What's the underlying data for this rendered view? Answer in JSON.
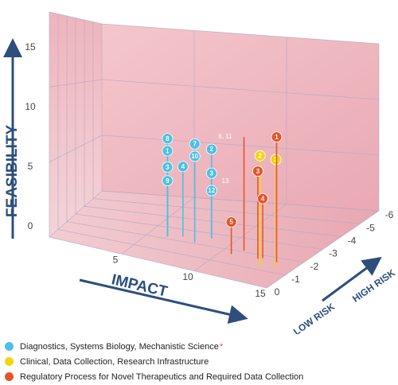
{
  "chart_data": {
    "type": "scatter3d",
    "x_label": "IMPACT",
    "y_label": "FEASIBILITY",
    "z_label_low": "LOW RISK",
    "z_label_high": "HIGH RISK",
    "xlim": [
      0,
      15
    ],
    "xticks": [
      5,
      10,
      15
    ],
    "ylim": [
      0,
      15
    ],
    "yticks": [
      0,
      5,
      10,
      15
    ],
    "zlim": [
      0,
      -6
    ],
    "zticks": [
      0,
      -1,
      -2,
      -3,
      -4,
      -5,
      -6
    ],
    "grid": true,
    "annotations": [
      "6, 11",
      "13"
    ],
    "series": [
      {
        "name": "Diagnostics, Systems Biology, Mechanistic Science",
        "footnote_mark": "*",
        "color": "#4cc0e6",
        "labels": [
          "8",
          "1",
          "3",
          "9",
          "4",
          "7",
          "10",
          "2",
          "3",
          "12"
        ],
        "x": [
          6.2,
          6.2,
          6.2,
          6.2,
          7,
          8,
          8,
          8.6,
          8.6,
          8.6
        ],
        "y": [
          7.2,
          6.3,
          5.1,
          4.1,
          5.2,
          7.2,
          6.3,
          6.7,
          4.9,
          3.6
        ],
        "z": [
          -2.2,
          -2.2,
          -2.2,
          -2.2,
          -2.4,
          -2.1,
          -2.1,
          -2.6,
          -2.6,
          -2.6
        ]
      },
      {
        "name": "Clinical, Data Collection, Research Infrastructure",
        "color": "#f3d60d",
        "labels": [
          "2",
          "1"
        ],
        "x": [
          13.1,
          13.9
        ],
        "y": [
          7.8,
          7.6
        ],
        "z": [
          -1.2,
          -1.4
        ]
      },
      {
        "name": "Regulatory Process for Novel Therapeutics and Required Data Collection",
        "color": "#e8532b",
        "labels": [
          "1",
          "3",
          "4",
          "5",
          null
        ],
        "x": [
          13.6,
          12.4,
          12.6,
          10.7,
          11.1
        ],
        "y": [
          9.0,
          6.3,
          4.3,
          2.3,
          8.3
        ],
        "z": [
          -1.7,
          -1.7,
          -1.8,
          -1.7,
          -2.1
        ]
      }
    ]
  }
}
